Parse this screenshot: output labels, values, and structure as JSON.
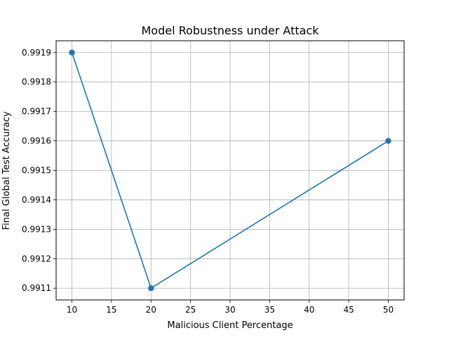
{
  "chart_data": {
    "type": "line",
    "title": "Model Robustness under Attack",
    "xlabel": "Malicious Client Percentage",
    "ylabel": "Final Global Test Accuracy",
    "x": [
      10,
      20,
      50
    ],
    "series": [
      {
        "values": [
          0.9919,
          0.9911,
          0.9916
        ],
        "color": "#1f77b4",
        "marker": "circle"
      }
    ],
    "xlim": [
      8,
      52
    ],
    "ylim": [
      0.99106,
      0.99194
    ],
    "xticks": [
      10,
      15,
      20,
      25,
      30,
      35,
      40,
      45,
      50
    ],
    "yticks": [
      0.9911,
      0.9912,
      0.9913,
      0.9914,
      0.9915,
      0.9916,
      0.9917,
      0.9918,
      0.9919
    ],
    "ytick_labels": [
      "0.9911",
      "0.9912",
      "0.9913",
      "0.9914",
      "0.9915",
      "0.9916",
      "0.9917",
      "0.9918",
      "0.9919"
    ],
    "grid": true,
    "colors": {
      "line": "#1f77b4",
      "grid": "#b0b0b0",
      "axes": "#000000"
    }
  }
}
